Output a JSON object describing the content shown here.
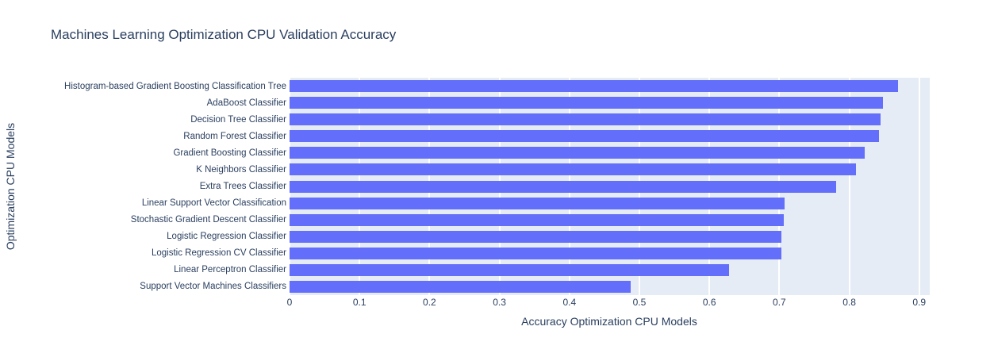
{
  "chart_data": {
    "type": "bar",
    "orientation": "horizontal",
    "title": "Machines Learning Optimization CPU Validation Accuracy",
    "xlabel": "Accuracy Optimization CPU Models",
    "ylabel": "Optimization CPU Models",
    "categories": [
      "Histogram-based Gradient Boosting Classification Tree",
      "AdaBoost Classifier",
      "Decision Tree Classifier",
      "Random Forest Classifier",
      "Gradient Boosting Classifier",
      "K Neighbors Classifier",
      "Extra Trees Classifier",
      "Linear Support Vector Classification",
      "Stochastic Gradient Descent Classifier",
      "Logistic Regression Classifier",
      "Logistic Regression CV Classifier",
      "Linear Perceptron Classifier",
      "Support Vector Machines Classifiers"
    ],
    "values": [
      0.87,
      0.848,
      0.845,
      0.843,
      0.822,
      0.81,
      0.781,
      0.708,
      0.706,
      0.703,
      0.703,
      0.628,
      0.487
    ],
    "xlim": [
      0,
      0.915
    ],
    "xticks": [
      0,
      0.1,
      0.2,
      0.3,
      0.4,
      0.5,
      0.6,
      0.7,
      0.8,
      0.9
    ],
    "xtick_labels": [
      "0",
      "0.1",
      "0.2",
      "0.3",
      "0.4",
      "0.5",
      "0.6",
      "0.7",
      "0.8",
      "0.9"
    ],
    "grid": true,
    "legend": "none",
    "colors": {
      "bar": "#636efa",
      "plot_bg": "#e5ecf6",
      "grid": "#ffffff",
      "text": "#2a3f5f",
      "page_bg": "#ffffff"
    }
  }
}
